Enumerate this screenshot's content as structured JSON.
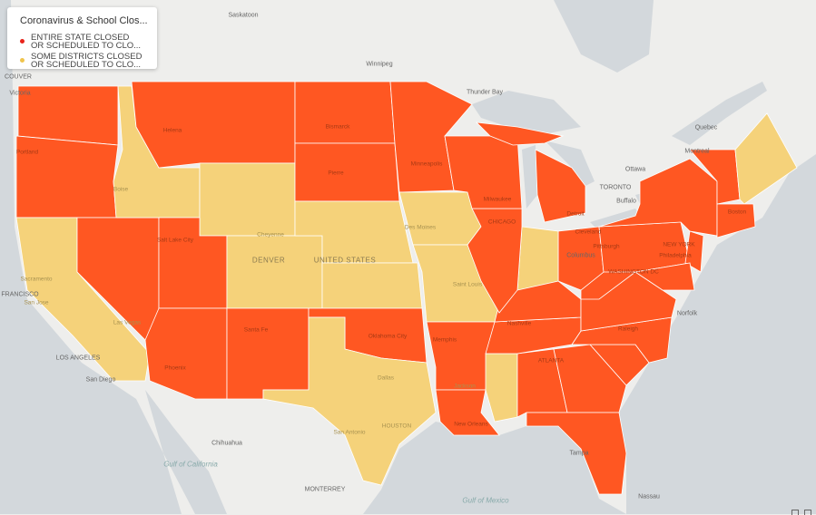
{
  "legend": {
    "title": "Coronavirus & School Clos...",
    "items": [
      {
        "label_line1": "ENTIRE STATE CLOSED",
        "label_line2": "OR SCHEDULED TO CLO...",
        "color": "#e8231a"
      },
      {
        "label_line1": "SOME DISTRICTS CLOSED",
        "label_line2": "OR SCHEDULED TO CLO...",
        "color": "#f0c44c"
      }
    ]
  },
  "colors": {
    "entire": "#ff5722",
    "some": "#f5d27a",
    "land": "#eeeeec",
    "water": "#d3d8dc",
    "border": "#ffffff"
  },
  "state_status": {
    "WA": "entire",
    "OR": "entire",
    "CA": "some",
    "NV": "entire",
    "ID": "some",
    "MT": "entire",
    "WY": "some",
    "UT": "entire",
    "CO": "some",
    "AZ": "entire",
    "NM": "entire",
    "ND": "entire",
    "SD": "entire",
    "NE": "some",
    "KS": "some",
    "OK": "entire",
    "TX": "some",
    "MN": "entire",
    "IA": "some",
    "MO": "some",
    "AR": "entire",
    "LA": "entire",
    "MS": "some",
    "AL": "entire",
    "GA": "entire",
    "FL": "entire",
    "SC": "entire",
    "NC": "entire",
    "TN": "entire",
    "KY": "entire",
    "VA": "entire",
    "WV": "entire",
    "OH": "entire",
    "IN": "some",
    "IL": "entire",
    "WI": "entire",
    "MI": "entire",
    "PA": "entire",
    "NY": "entire",
    "VTNH": "entire",
    "ME": "some",
    "SNE": "entire",
    "NJ": "entire",
    "MDDE": "entire"
  },
  "labels": [
    "Saskatoon",
    "Winnipeg",
    "COUVER",
    "Victoria",
    "Thunder Bay",
    "Quebec",
    "Montreal",
    "Ottawa",
    "TORONTO",
    "Buffalo",
    "Portland",
    "Helena",
    "Bismarck",
    "Pierre",
    "Minneapolis",
    "Boise",
    "Cheyenne",
    "Salt Lake City",
    "DENVER",
    "UNITED STATES",
    "Des Moines",
    "CHICAGO",
    "Milwaukee",
    "Detroit",
    "Cleveland",
    "Pittsburgh",
    "NEW YORK",
    "Boston",
    "Philadelphia",
    "WASHINGTON DC",
    "Columbus",
    "Saint Louis",
    "Sacramento",
    "FRANCISCO",
    "San Jose",
    "Las Vegas",
    "LOS ANGELES",
    "San Diego",
    "Phoenix",
    "Santa Fe",
    "Oklahoma City",
    "Memphis",
    "Nashville",
    "Raleigh",
    "ATLANTA",
    "Jackson",
    "Dallas",
    "HOUSTON",
    "San Antonio",
    "New Orleans",
    "Tampa",
    "Chihuahua",
    "MONTERREY",
    "Gulf of California",
    "Gulf of Mexico",
    "Nassau",
    "Norfolk"
  ]
}
